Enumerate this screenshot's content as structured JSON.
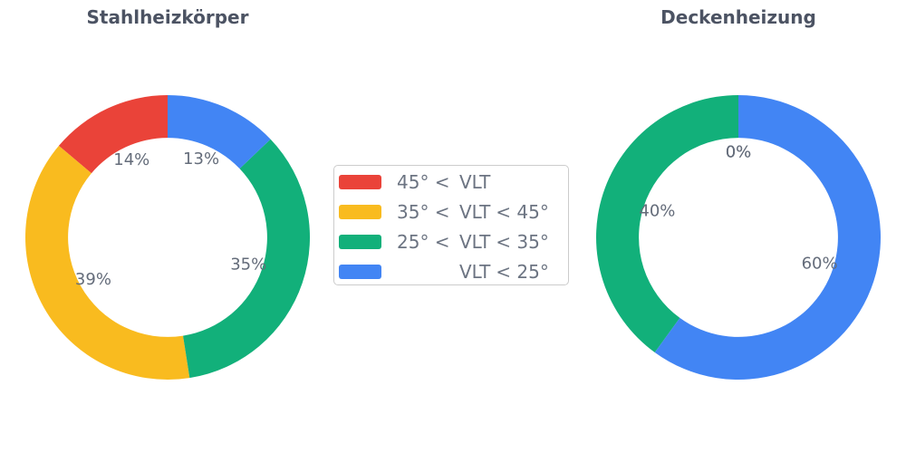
{
  "style": {
    "background": "#ffffff",
    "title_color": "#4c5363",
    "percent_label_color": "#646c7a",
    "legend_text_color": "#6c7482",
    "legend_border_color": "#cccccc",
    "palette": {
      "red": "#ea4339",
      "yellow": "#f9bb1f",
      "green": "#12b07a",
      "blue": "#4285f4"
    }
  },
  "chart_data": [
    {
      "type": "pie",
      "subtype": "donut",
      "title": "Stahlheizkörper",
      "categories": [
        "45° < VLT",
        "35° < VLT < 45°",
        "25° < VLT < 35°",
        "VLT < 25°"
      ],
      "values": [
        14,
        39,
        35,
        13
      ],
      "pct_labels": [
        "14%",
        "39%",
        "35%",
        "13%"
      ],
      "unit": "%",
      "colors": [
        "#ea4339",
        "#f9bb1f",
        "#12b07a",
        "#4285f4"
      ],
      "start_angle_deg": 90,
      "direction": "counterclockwise",
      "donut_hole_ratio": 0.7,
      "pct_label_distance": 0.6
    },
    {
      "type": "pie",
      "subtype": "donut",
      "title": "Deckenheizung",
      "categories": [
        "45° < VLT",
        "35° < VLT < 45°",
        "25° < VLT < 35°",
        "VLT < 25°"
      ],
      "values": [
        0,
        0,
        40,
        60
      ],
      "pct_labels": [
        "0%",
        "0%",
        "40%",
        "60%"
      ],
      "unit": "%",
      "colors": [
        "#ea4339",
        "#f9bb1f",
        "#12b07a",
        "#4285f4"
      ],
      "start_angle_deg": 90,
      "direction": "counterclockwise",
      "donut_hole_ratio": 0.7,
      "pct_label_distance": 0.6
    }
  ],
  "legend": {
    "items": [
      {
        "label": "45° < VLT",
        "prefix": "45° <",
        "core": "VLT",
        "suffix": "",
        "color": "#ea4339"
      },
      {
        "label": "35° < VLT < 45°",
        "prefix": "35° <",
        "core": "VLT",
        "suffix": "< 45°",
        "color": "#f9bb1f"
      },
      {
        "label": "25° < VLT < 35°",
        "prefix": "25° <",
        "core": "VLT",
        "suffix": "< 35°",
        "color": "#12b07a"
      },
      {
        "label": "VLT < 25°",
        "prefix": "",
        "core": "VLT",
        "suffix": "< 25°",
        "color": "#4285f4"
      }
    ]
  }
}
